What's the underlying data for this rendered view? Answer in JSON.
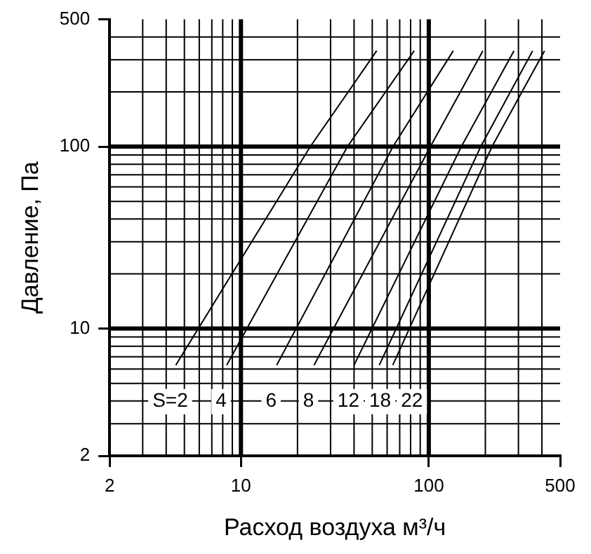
{
  "chart_data": {
    "type": "line",
    "xlabel": "Расход воздуха м³/ч",
    "ylabel": "Давление, Па",
    "log": "xy",
    "grid": true,
    "legend": false,
    "marker": "none",
    "line_style": "solid",
    "xlim": [
      2,
      500
    ],
    "ylim": [
      2,
      500
    ],
    "xticks": [
      2,
      10,
      100,
      500
    ],
    "yticks": [
      2,
      10,
      100,
      500
    ],
    "series": [
      {
        "name": "S=2",
        "color": "#000000",
        "x": [
          4.5,
          23.4,
          52.8
        ],
        "values": [
          6.3,
          100,
          336
        ]
      },
      {
        "name": "4",
        "color": "#000000",
        "x": [
          8.4,
          36.9,
          83.6
        ],
        "values": [
          6.3,
          100,
          336
        ]
      },
      {
        "name": "6",
        "color": "#000000",
        "x": [
          15.5,
          64.5,
          135
        ],
        "values": [
          6.3,
          100,
          336
        ]
      },
      {
        "name": "8",
        "color": "#000000",
        "x": [
          24.5,
          102,
          194
        ],
        "values": [
          6.3,
          100,
          336
        ]
      },
      {
        "name": "12",
        "color": "#000000",
        "x": [
          40,
          149,
          284
        ],
        "values": [
          6.3,
          100,
          336
        ]
      },
      {
        "name": "18",
        "color": "#000000",
        "x": [
          54.5,
          189,
          357
        ],
        "values": [
          6.3,
          100,
          336
        ]
      },
      {
        "name": "22",
        "color": "#000000",
        "x": [
          64.3,
          217,
          413
        ],
        "values": [
          6.3,
          100,
          336
        ]
      }
    ]
  }
}
